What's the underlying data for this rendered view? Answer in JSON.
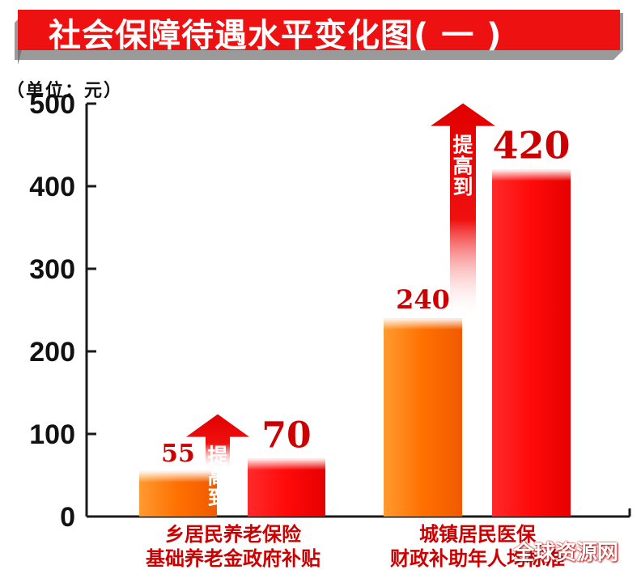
{
  "header": {
    "title": "社会保障待遇水平变化图( 一 )",
    "unit_label": "（单位：元）"
  },
  "chart_data": {
    "type": "bar",
    "title": "社会保障待遇水平变化图( 一 )",
    "ylabel": "（单位：元）",
    "ylim": [
      0,
      500
    ],
    "yticks": [
      0,
      100,
      200,
      300,
      400,
      500
    ],
    "groups": [
      {
        "label_line1": "乡居民养老保险",
        "label_line2": "基础养老金政府补贴",
        "before": 55,
        "after": 70,
        "before_label": "55",
        "after_label": "70",
        "arrow_text": "提高到"
      },
      {
        "label_line1": "城镇居民医保",
        "label_line2": "财政补助年人均标准",
        "before": 240,
        "after": 420,
        "before_label": "240",
        "after_label": "420",
        "arrow_text": "提高到"
      }
    ],
    "colors": {
      "before": "#ff7a00",
      "after": "#ff1010",
      "arrow": "#e60000",
      "banner": "#ee1111",
      "label": "#cc0000",
      "axis": "#1a1a1a"
    }
  },
  "watermark": "全球资源网"
}
